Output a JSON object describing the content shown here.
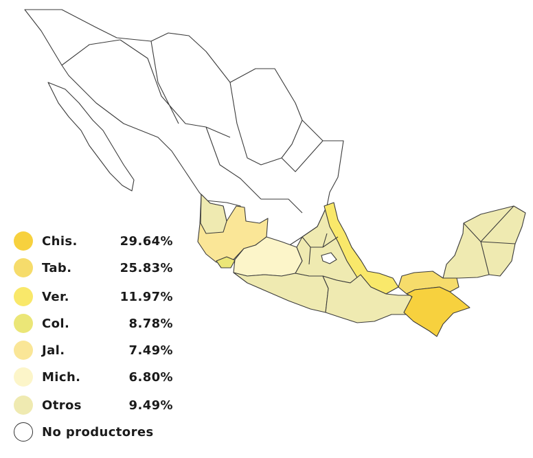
{
  "map": {
    "country": "México",
    "legend": [
      {
        "id": "chis",
        "label": "Chis.",
        "value": "29.64%",
        "color": "#f7d13e"
      },
      {
        "id": "tab",
        "label": "Tab.",
        "value": "25.83%",
        "color": "#f6dc6b"
      },
      {
        "id": "ver",
        "label": "Ver.",
        "value": "11.97%",
        "color": "#f9e86a"
      },
      {
        "id": "col",
        "label": "Col.",
        "value": "8.78%",
        "color": "#ebe677"
      },
      {
        "id": "jal",
        "label": "Jal.",
        "value": "7.49%",
        "color": "#fae697"
      },
      {
        "id": "mich",
        "label": "Mich.",
        "value": "6.80%",
        "color": "#fcf5c9"
      },
      {
        "id": "otros",
        "label": "Otros",
        "value": "9.49%",
        "color": "#efeab1"
      },
      {
        "id": "none",
        "label": "No productores",
        "value": "",
        "color": "#ffffff"
      }
    ]
  }
}
